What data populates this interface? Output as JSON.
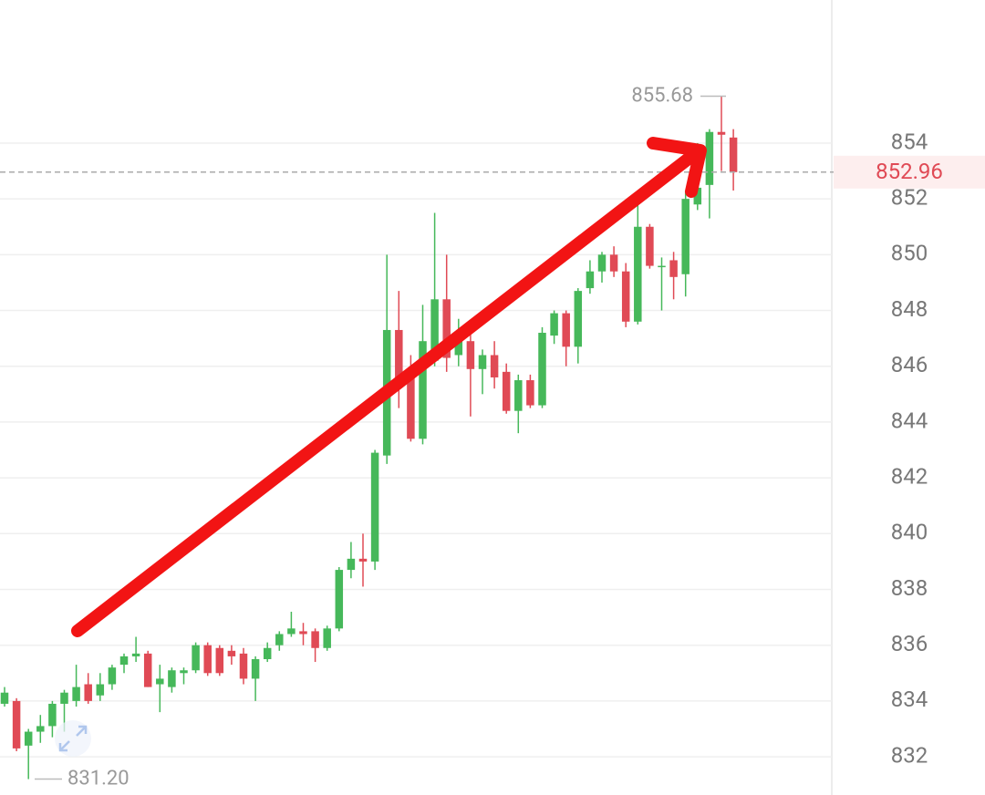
{
  "chart_data": {
    "type": "candlestick",
    "open": [
      833.9,
      834.0,
      832.4,
      832.9,
      833.1,
      833.9,
      834.0,
      834.6,
      834.2,
      834.6,
      835.3,
      835.6,
      835.7,
      834.6,
      834.5,
      835.0,
      835.1,
      836.0,
      835.9,
      835.8,
      835.7,
      834.8,
      835.5,
      836.0,
      836.4,
      836.5,
      836.5,
      835.9,
      836.6,
      838.7,
      839.1,
      839.0,
      842.8,
      847.3,
      845.9,
      843.4,
      846.2,
      848.4,
      846.4,
      846.9,
      845.9,
      846.4,
      845.8,
      844.4,
      845.5,
      844.6,
      847.1,
      847.9,
      846.7,
      848.8,
      849.4,
      850.0,
      849.4,
      847.6,
      851.0,
      849.6,
      849.8,
      849.3,
      851.8,
      852.5,
      854.4,
      854.2
    ],
    "high": [
      834.5,
      834.1,
      833.0,
      833.5,
      834.0,
      834.4,
      835.3,
      835.0,
      835.0,
      835.3,
      835.7,
      836.3,
      835.8,
      835.3,
      835.2,
      835.2,
      836.1,
      836.1,
      836.0,
      836.0,
      835.9,
      835.6,
      836.1,
      836.5,
      837.2,
      836.8,
      836.6,
      836.7,
      838.8,
      839.7,
      840.0,
      843.0,
      850.0,
      848.7,
      846.4,
      848.2,
      851.5,
      850.0,
      847.7,
      847.3,
      846.6,
      846.9,
      846.1,
      845.7,
      845.7,
      847.4,
      848.0,
      848.0,
      848.8,
      849.8,
      850.1,
      850.3,
      849.7,
      851.8,
      851.1,
      849.9,
      850.1,
      852.3,
      854.0,
      854.5,
      855.68,
      854.5
    ],
    "low": [
      833.8,
      832.2,
      831.2,
      832.5,
      832.7,
      832.9,
      833.8,
      833.9,
      834.0,
      834.4,
      835.0,
      835.4,
      834.5,
      833.6,
      834.3,
      834.6,
      835.0,
      834.9,
      834.9,
      835.3,
      834.6,
      834.0,
      835.4,
      835.8,
      836.3,
      836.0,
      835.4,
      835.8,
      836.5,
      838.4,
      838.1,
      838.7,
      842.5,
      844.5,
      843.3,
      843.2,
      846.0,
      845.8,
      846.0,
      844.2,
      845.0,
      845.2,
      844.3,
      843.6,
      844.5,
      844.5,
      846.8,
      846.0,
      846.1,
      848.6,
      849.0,
      849.2,
      847.4,
      847.5,
      849.5,
      848.0,
      848.4,
      848.5,
      851.6,
      851.3,
      853.0,
      852.3
    ],
    "close": [
      834.3,
      832.3,
      832.9,
      833.1,
      833.9,
      834.3,
      834.5,
      834.0,
      834.6,
      835.2,
      835.6,
      835.7,
      834.5,
      834.8,
      835.1,
      835.1,
      836.0,
      835.0,
      835.0,
      835.6,
      834.8,
      835.5,
      835.9,
      836.4,
      836.6,
      836.4,
      835.9,
      836.6,
      838.7,
      839.1,
      839.0,
      842.9,
      847.3,
      845.3,
      843.4,
      846.9,
      848.4,
      846.3,
      847.1,
      845.9,
      846.4,
      845.6,
      844.4,
      845.5,
      844.6,
      847.2,
      847.9,
      846.7,
      848.7,
      849.4,
      850.0,
      849.4,
      847.6,
      851.0,
      849.6,
      849.6,
      849.2,
      852.0,
      852.4,
      854.4,
      854.3,
      852.96
    ],
    "up_color": "#46b85a",
    "down_color": "#e04a55",
    "ylim": [
      830.63,
      859.13
    ],
    "yticks": [
      832,
      834,
      836,
      838,
      840,
      842,
      844,
      846,
      848,
      850,
      852,
      854
    ],
    "grid": true,
    "high_marker": 855.68,
    "low_marker": {
      "value": 831.2,
      "label": "831.20"
    },
    "last_price": 852.96
  }
}
